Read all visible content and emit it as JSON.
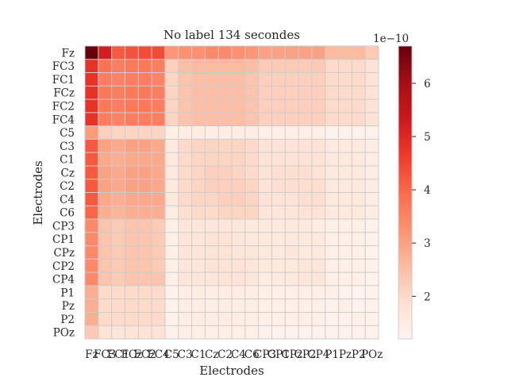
{
  "chart_data": {
    "type": "heatmap",
    "title": "No label 134 secondes",
    "xlabel": "Electrodes",
    "ylabel": "Electrodes",
    "electrodes": [
      "Fz",
      "FC3",
      "FC1",
      "FCz",
      "FC2",
      "FC4",
      "C5",
      "C3",
      "C1",
      "Cz",
      "C2",
      "C4",
      "C6",
      "CP3",
      "CP1",
      "CPz",
      "CP2",
      "CP4",
      "P1",
      "Pz",
      "P2",
      "POz"
    ],
    "colorbar": {
      "scale_label": "1e−10",
      "vmin": 1.2,
      "vmax": 6.7,
      "ticks": [
        2,
        3,
        4,
        5,
        6
      ],
      "tick_labels": [
        "2",
        "3",
        "4",
        "5",
        "6"
      ],
      "colormap": "Reds"
    },
    "grid": true,
    "values": [
      [
        6.7,
        5.2,
        4.2,
        4.3,
        4.4,
        4.4,
        3.2,
        3.3,
        3.3,
        3.4,
        3.4,
        3.3,
        3.2,
        3.0,
        3.0,
        3.0,
        3.0,
        3.0,
        2.6,
        2.6,
        2.6,
        2.3
      ],
      [
        4.8,
        3.8,
        3.6,
        3.7,
        3.7,
        3.6,
        2.2,
        2.5,
        2.6,
        2.6,
        2.6,
        2.6,
        2.5,
        2.3,
        2.3,
        2.3,
        2.3,
        2.3,
        2.0,
        2.0,
        2.0,
        1.8
      ],
      [
        4.8,
        3.6,
        3.5,
        3.6,
        3.6,
        3.5,
        2.1,
        2.4,
        2.5,
        2.5,
        2.5,
        2.5,
        2.4,
        2.2,
        2.2,
        2.2,
        2.2,
        2.2,
        2.0,
        2.0,
        2.0,
        1.8
      ],
      [
        4.8,
        3.7,
        3.6,
        3.7,
        3.7,
        3.6,
        2.1,
        2.4,
        2.5,
        2.5,
        2.5,
        2.5,
        2.4,
        2.2,
        2.2,
        2.2,
        2.2,
        2.2,
        2.0,
        2.0,
        2.0,
        1.8
      ],
      [
        4.8,
        3.7,
        3.6,
        3.7,
        3.7,
        3.6,
        2.1,
        2.4,
        2.5,
        2.5,
        2.5,
        2.5,
        2.4,
        2.2,
        2.2,
        2.2,
        2.2,
        2.2,
        2.0,
        2.0,
        2.0,
        1.8
      ],
      [
        4.8,
        3.6,
        3.5,
        3.6,
        3.6,
        3.6,
        2.1,
        2.4,
        2.5,
        2.5,
        2.5,
        2.5,
        2.4,
        2.2,
        2.2,
        2.2,
        2.2,
        2.2,
        2.0,
        2.0,
        2.0,
        1.8
      ],
      [
        3.1,
        2.2,
        2.1,
        2.1,
        2.1,
        2.1,
        1.4,
        1.5,
        1.5,
        1.5,
        1.5,
        1.5,
        1.5,
        1.4,
        1.4,
        1.4,
        1.4,
        1.4,
        1.3,
        1.3,
        1.3,
        1.3
      ],
      [
        4.2,
        3.0,
        2.9,
        3.0,
        3.0,
        2.9,
        1.6,
        2.0,
        2.1,
        2.1,
        2.1,
        2.1,
        2.0,
        1.8,
        1.8,
        1.8,
        1.8,
        1.8,
        1.6,
        1.6,
        1.6,
        1.5
      ],
      [
        4.2,
        2.9,
        2.8,
        2.9,
        2.9,
        2.9,
        1.6,
        2.0,
        2.1,
        2.1,
        2.1,
        2.1,
        2.0,
        1.8,
        1.8,
        1.8,
        1.8,
        1.8,
        1.6,
        1.6,
        1.6,
        1.5
      ],
      [
        4.2,
        3.0,
        2.9,
        3.0,
        3.0,
        2.9,
        1.6,
        2.0,
        2.1,
        2.2,
        2.2,
        2.1,
        2.0,
        1.8,
        1.9,
        1.9,
        1.9,
        1.8,
        1.6,
        1.6,
        1.6,
        1.5
      ],
      [
        4.2,
        3.0,
        2.9,
        3.0,
        3.0,
        2.9,
        1.6,
        2.0,
        2.1,
        2.2,
        2.2,
        2.2,
        2.1,
        1.8,
        1.9,
        1.9,
        1.9,
        1.9,
        1.6,
        1.6,
        1.6,
        1.5
      ],
      [
        4.2,
        2.9,
        2.8,
        2.9,
        2.9,
        2.9,
        1.6,
        2.0,
        2.1,
        2.1,
        2.2,
        2.2,
        2.1,
        1.8,
        1.8,
        1.8,
        1.9,
        1.9,
        1.6,
        1.6,
        1.6,
        1.5
      ],
      [
        4.0,
        2.8,
        2.7,
        2.8,
        2.8,
        2.8,
        1.5,
        1.9,
        2.0,
        2.0,
        2.1,
        2.1,
        2.1,
        1.7,
        1.7,
        1.7,
        1.8,
        1.8,
        1.6,
        1.6,
        1.6,
        1.5
      ],
      [
        3.4,
        2.4,
        2.3,
        2.4,
        2.4,
        2.3,
        1.4,
        1.7,
        1.7,
        1.7,
        1.7,
        1.7,
        1.6,
        1.6,
        1.6,
        1.6,
        1.6,
        1.5,
        1.4,
        1.4,
        1.4,
        1.3
      ],
      [
        3.4,
        2.4,
        2.3,
        2.4,
        2.4,
        2.3,
        1.4,
        1.7,
        1.7,
        1.8,
        1.8,
        1.7,
        1.6,
        1.6,
        1.6,
        1.6,
        1.6,
        1.6,
        1.4,
        1.4,
        1.4,
        1.3
      ],
      [
        3.4,
        2.4,
        2.3,
        2.4,
        2.4,
        2.3,
        1.4,
        1.7,
        1.7,
        1.8,
        1.8,
        1.7,
        1.7,
        1.6,
        1.6,
        1.7,
        1.6,
        1.6,
        1.4,
        1.4,
        1.4,
        1.3
      ],
      [
        3.4,
        2.4,
        2.3,
        2.4,
        2.4,
        2.3,
        1.4,
        1.7,
        1.7,
        1.8,
        1.8,
        1.8,
        1.7,
        1.6,
        1.6,
        1.6,
        1.7,
        1.7,
        1.4,
        1.4,
        1.4,
        1.3
      ],
      [
        3.4,
        2.4,
        2.3,
        2.4,
        2.4,
        2.4,
        1.4,
        1.7,
        1.7,
        1.7,
        1.8,
        1.8,
        1.7,
        1.5,
        1.6,
        1.6,
        1.7,
        1.7,
        1.4,
        1.4,
        1.4,
        1.3
      ],
      [
        2.8,
        2.0,
        2.0,
        2.0,
        2.0,
        2.0,
        1.3,
        1.5,
        1.5,
        1.5,
        1.5,
        1.5,
        1.5,
        1.4,
        1.4,
        1.4,
        1.4,
        1.4,
        1.4,
        1.3,
        1.3,
        1.3
      ],
      [
        2.8,
        2.0,
        2.0,
        2.0,
        2.0,
        2.0,
        1.3,
        1.5,
        1.5,
        1.5,
        1.5,
        1.5,
        1.5,
        1.4,
        1.4,
        1.4,
        1.4,
        1.4,
        1.3,
        1.4,
        1.3,
        1.3
      ],
      [
        2.8,
        2.0,
        2.0,
        2.0,
        2.0,
        2.0,
        1.3,
        1.5,
        1.5,
        1.5,
        1.5,
        1.5,
        1.5,
        1.4,
        1.4,
        1.4,
        1.4,
        1.4,
        1.3,
        1.3,
        1.4,
        1.3
      ],
      [
        2.3,
        1.8,
        1.7,
        1.8,
        1.8,
        1.8,
        1.3,
        1.4,
        1.4,
        1.4,
        1.4,
        1.4,
        1.4,
        1.3,
        1.3,
        1.3,
        1.3,
        1.3,
        1.3,
        1.3,
        1.3,
        1.3
      ]
    ]
  }
}
